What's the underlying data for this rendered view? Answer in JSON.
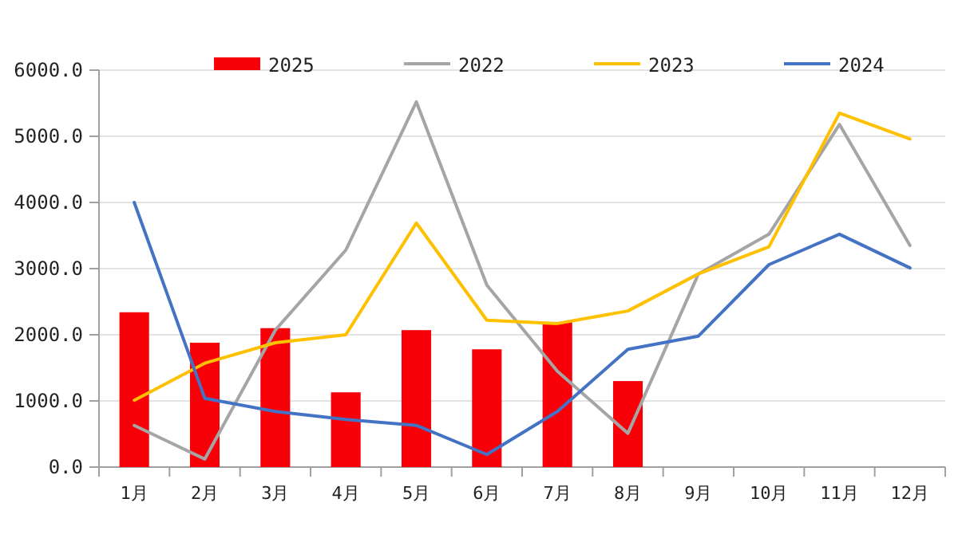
{
  "chart_data": {
    "type": "bar",
    "categories": [
      "1月",
      "2月",
      "3月",
      "4月",
      "5月",
      "6月",
      "7月",
      "8月",
      "9月",
      "10月",
      "11月",
      "12月"
    ],
    "series": [
      {
        "name": "2025",
        "color": "#f70008",
        "values": [
          2340,
          1880,
          2100,
          1130,
          2070,
          1780,
          2190,
          1300,
          null,
          null,
          null,
          null
        ]
      },
      {
        "name": "2022",
        "type": "line",
        "color": "#a5a5a5",
        "values": [
          630,
          120,
          2070,
          3280,
          5520,
          2750,
          1450,
          510,
          2920,
          3520,
          5180,
          3350
        ]
      },
      {
        "name": "2023",
        "type": "line",
        "color": "#ffc000",
        "values": [
          1010,
          1570,
          1880,
          2000,
          3690,
          2220,
          2170,
          2360,
          2920,
          3330,
          5350,
          4960
        ]
      },
      {
        "name": "2024",
        "type": "line",
        "color": "#4472c4",
        "values": [
          4000,
          1040,
          840,
          720,
          630,
          190,
          840,
          1780,
          1980,
          3060,
          3520,
          3010
        ]
      }
    ],
    "ylim": [
      0,
      6000
    ],
    "yticks": [
      {
        "value": 0,
        "label": "0.0"
      },
      {
        "value": 1000,
        "label": "1000.0"
      },
      {
        "value": 2000,
        "label": "2000.0"
      },
      {
        "value": 3000,
        "label": "3000.0"
      },
      {
        "value": 4000,
        "label": "4000.0"
      },
      {
        "value": 5000,
        "label": "5000.0"
      },
      {
        "value": 6000,
        "label": "6000.0"
      }
    ],
    "grid": "y",
    "legend": "top",
    "marker": "none",
    "line_style": "solid"
  }
}
